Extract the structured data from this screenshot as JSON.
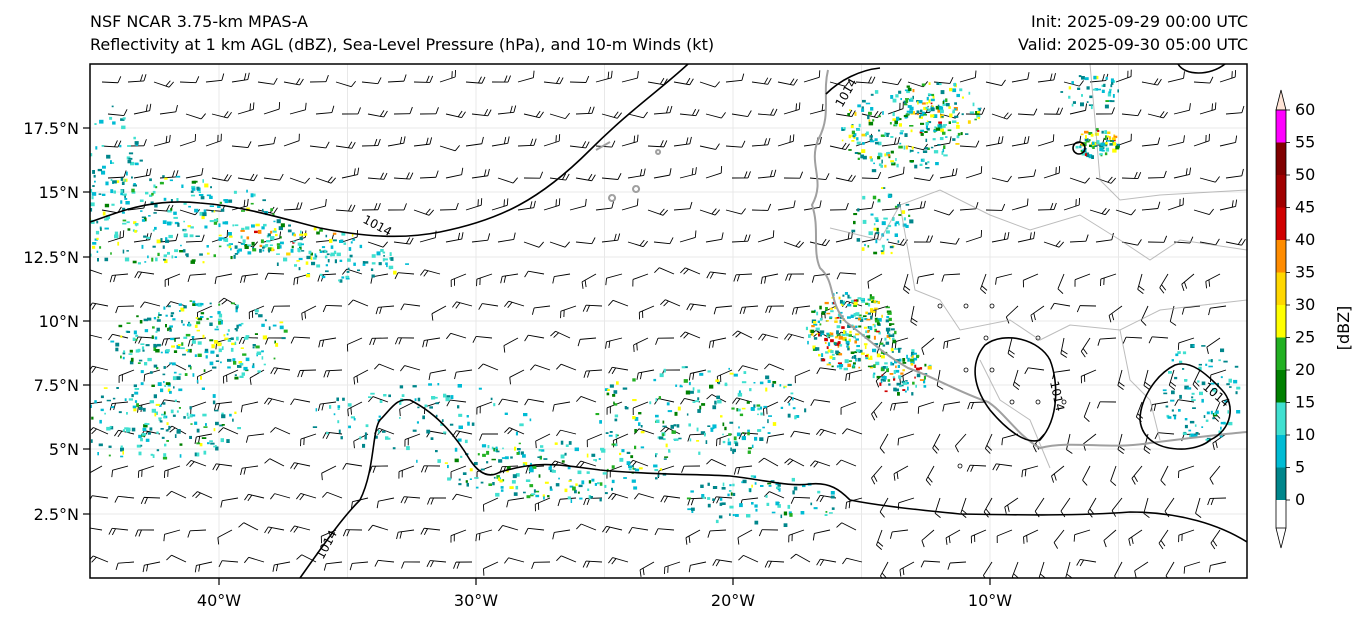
{
  "header": {
    "model_line": "NSF NCAR 3.75-km MPAS-A",
    "fields_line": "Reflectivity at 1 km AGL (dBZ), Sea-Level Pressure (hPa), and 10-m Winds (kt)",
    "init_line": "Init: 2025-09-29 00:00 UTC",
    "valid_line": "Valid: 2025-09-30 05:00 UTC"
  },
  "map": {
    "lon_range": [
      -45,
      0
    ],
    "lat_range": [
      0,
      20
    ],
    "lon_ticks": [
      "40°W",
      "30°W",
      "20°W",
      "10°W"
    ],
    "lat_ticks": [
      "2.5°N",
      "5°N",
      "7.5°N",
      "10°N",
      "12.5°N",
      "15°N",
      "17.5°N"
    ],
    "isobar_label": "1014",
    "coastline_color": "#a0a0a0",
    "isobar_color": "#000000"
  },
  "colorbar": {
    "label": "[dBZ]",
    "ticks": [
      "0",
      "5",
      "10",
      "15",
      "20",
      "25",
      "30",
      "35",
      "40",
      "45",
      "50",
      "55",
      "60"
    ],
    "colors": [
      "#00868b",
      "#00bcd4",
      "#40e0d0",
      "#008000",
      "#22b022",
      "#ffff00",
      "#ffd700",
      "#ff8c00",
      "#d00000",
      "#a00000",
      "#800000",
      "#ff00ff",
      "#ffe4d6"
    ]
  }
}
